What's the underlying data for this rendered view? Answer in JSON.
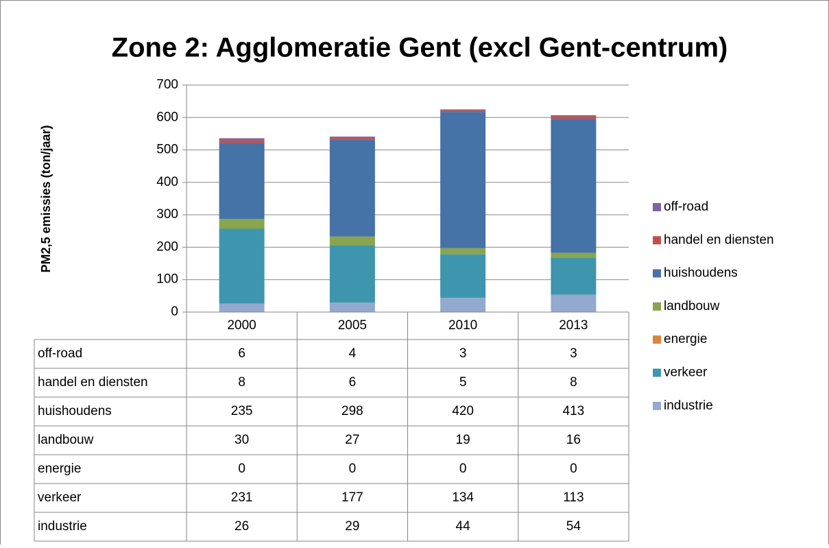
{
  "chart_data": {
    "type": "stacked_bar",
    "title": "Zone 2: Agglomeratie Gent (excl Gent-centrum)",
    "y_label": "PM2,5 emissies (ton/jaar)",
    "categories": [
      "2000",
      "2005",
      "2010",
      "2013"
    ],
    "series": [
      {
        "name": "off-road",
        "color": "#7f62a0",
        "values": [
          6,
          4,
          3,
          3
        ]
      },
      {
        "name": "handel en diensten",
        "color": "#c0504d",
        "values": [
          8,
          6,
          5,
          8
        ]
      },
      {
        "name": "huishoudens",
        "color": "#4572a7",
        "values": [
          235,
          298,
          420,
          413
        ]
      },
      {
        "name": "landbouw",
        "color": "#89a54e",
        "values": [
          30,
          27,
          19,
          16
        ]
      },
      {
        "name": "energie",
        "color": "#db843d",
        "values": [
          0,
          0,
          0,
          0
        ]
      },
      {
        "name": "verkeer",
        "color": "#3d96ae",
        "values": [
          231,
          177,
          134,
          113
        ]
      },
      {
        "name": "industrie",
        "color": "#93a9cf",
        "values": [
          26,
          29,
          44,
          54
        ]
      }
    ],
    "ylim": [
      0,
      700
    ],
    "yticks": [
      0,
      100,
      200,
      300,
      400,
      500,
      600,
      700
    ],
    "grid": true,
    "legend": "right"
  }
}
